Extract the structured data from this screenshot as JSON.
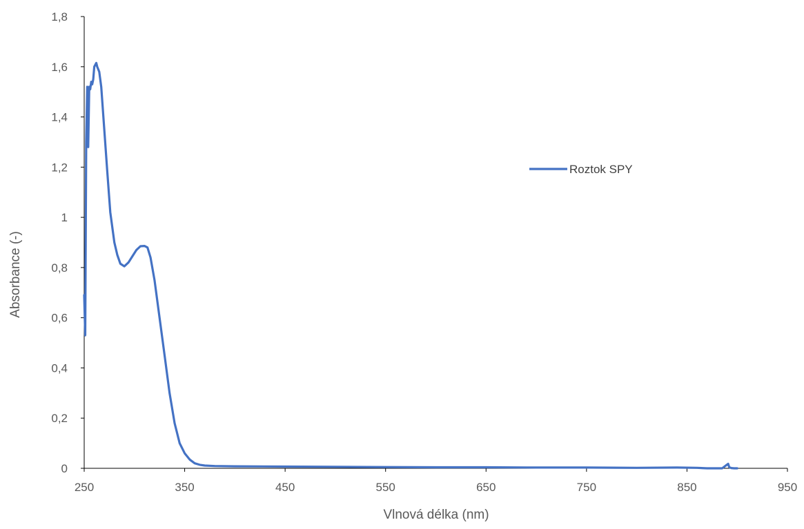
{
  "chart_data": {
    "type": "line",
    "xlabel": "Vlnová délka (nm)",
    "ylabel": "Absorbance (-)",
    "xlim": [
      250,
      950
    ],
    "ylim": [
      0,
      1.8
    ],
    "x_ticks": [
      250,
      350,
      450,
      550,
      650,
      750,
      850,
      950
    ],
    "x_tick_labels": [
      "250",
      "350",
      "450",
      "550",
      "650",
      "750",
      "850",
      "950"
    ],
    "y_ticks": [
      0,
      0.2,
      0.4,
      0.6,
      0.8,
      1.0,
      1.2,
      1.4,
      1.6,
      1.8
    ],
    "y_tick_labels": [
      "0",
      "0,2",
      "0,4",
      "0,6",
      "0,8",
      "1",
      "1,2",
      "1,4",
      "1,6",
      "1,8"
    ],
    "grid": false,
    "legend_position": "right",
    "series": [
      {
        "name": "Roztok SPY",
        "color": "#4472C4",
        "x": [
          250,
          251,
          252,
          253,
          254,
          255,
          256,
          257,
          258,
          259,
          260,
          262,
          263,
          265,
          267,
          270,
          273,
          276,
          280,
          283,
          286,
          290,
          294,
          298,
          302,
          306,
          310,
          313,
          316,
          320,
          325,
          330,
          335,
          340,
          345,
          350,
          355,
          360,
          365,
          370,
          380,
          400,
          450,
          500,
          550,
          600,
          650,
          700,
          750,
          800,
          840,
          860,
          870,
          880,
          885,
          889,
          891,
          892,
          894,
          897,
          900
        ],
        "y": [
          0.69,
          0.53,
          1.3,
          1.52,
          1.28,
          1.52,
          1.51,
          1.54,
          1.53,
          1.55,
          1.6,
          1.615,
          1.6,
          1.58,
          1.52,
          1.35,
          1.18,
          1.02,
          0.9,
          0.85,
          0.815,
          0.805,
          0.82,
          0.845,
          0.87,
          0.885,
          0.886,
          0.88,
          0.84,
          0.75,
          0.6,
          0.45,
          0.3,
          0.18,
          0.1,
          0.06,
          0.035,
          0.02,
          0.014,
          0.011,
          0.009,
          0.008,
          0.007,
          0.006,
          0.005,
          0.004,
          0.004,
          0.003,
          0.003,
          0.002,
          0.003,
          0.002,
          0.0,
          0.0,
          0.0,
          0.012,
          0.018,
          0.005,
          0.001,
          0.0,
          0.0
        ]
      }
    ]
  }
}
